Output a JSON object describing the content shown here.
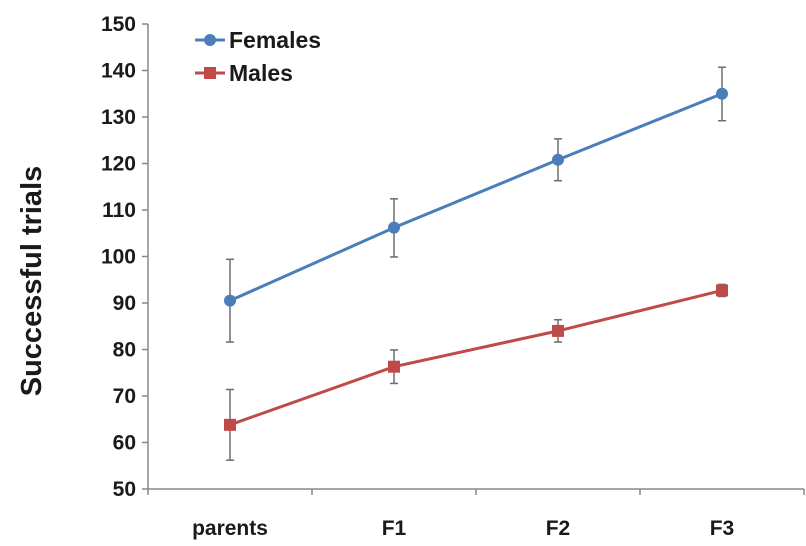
{
  "chart_data": {
    "type": "line",
    "title": "",
    "xlabel": "",
    "ylabel": "Successful  trials",
    "categories": [
      "parents",
      "F1",
      "F2",
      "F3"
    ],
    "ylim": [
      50,
      150
    ],
    "yticks": [
      50,
      60,
      70,
      80,
      90,
      100,
      110,
      120,
      130,
      140,
      150
    ],
    "grid": false,
    "legend_position": "top-left",
    "series": [
      {
        "name": "Females",
        "color": "#4a7ebb",
        "marker": "circle",
        "values": [
          90.5,
          106.2,
          120.8,
          135.0
        ],
        "error_low": [
          81.6,
          99.9,
          116.3,
          129.2
        ],
        "error_high": [
          99.4,
          112.4,
          125.3,
          140.7
        ]
      },
      {
        "name": "Males",
        "color": "#be4b48",
        "marker": "square",
        "values": [
          63.8,
          76.3,
          84.0,
          92.7
        ],
        "error_low": [
          56.2,
          72.7,
          81.6,
          91.4
        ],
        "error_high": [
          71.4,
          79.9,
          86.4,
          94.0
        ]
      }
    ]
  }
}
